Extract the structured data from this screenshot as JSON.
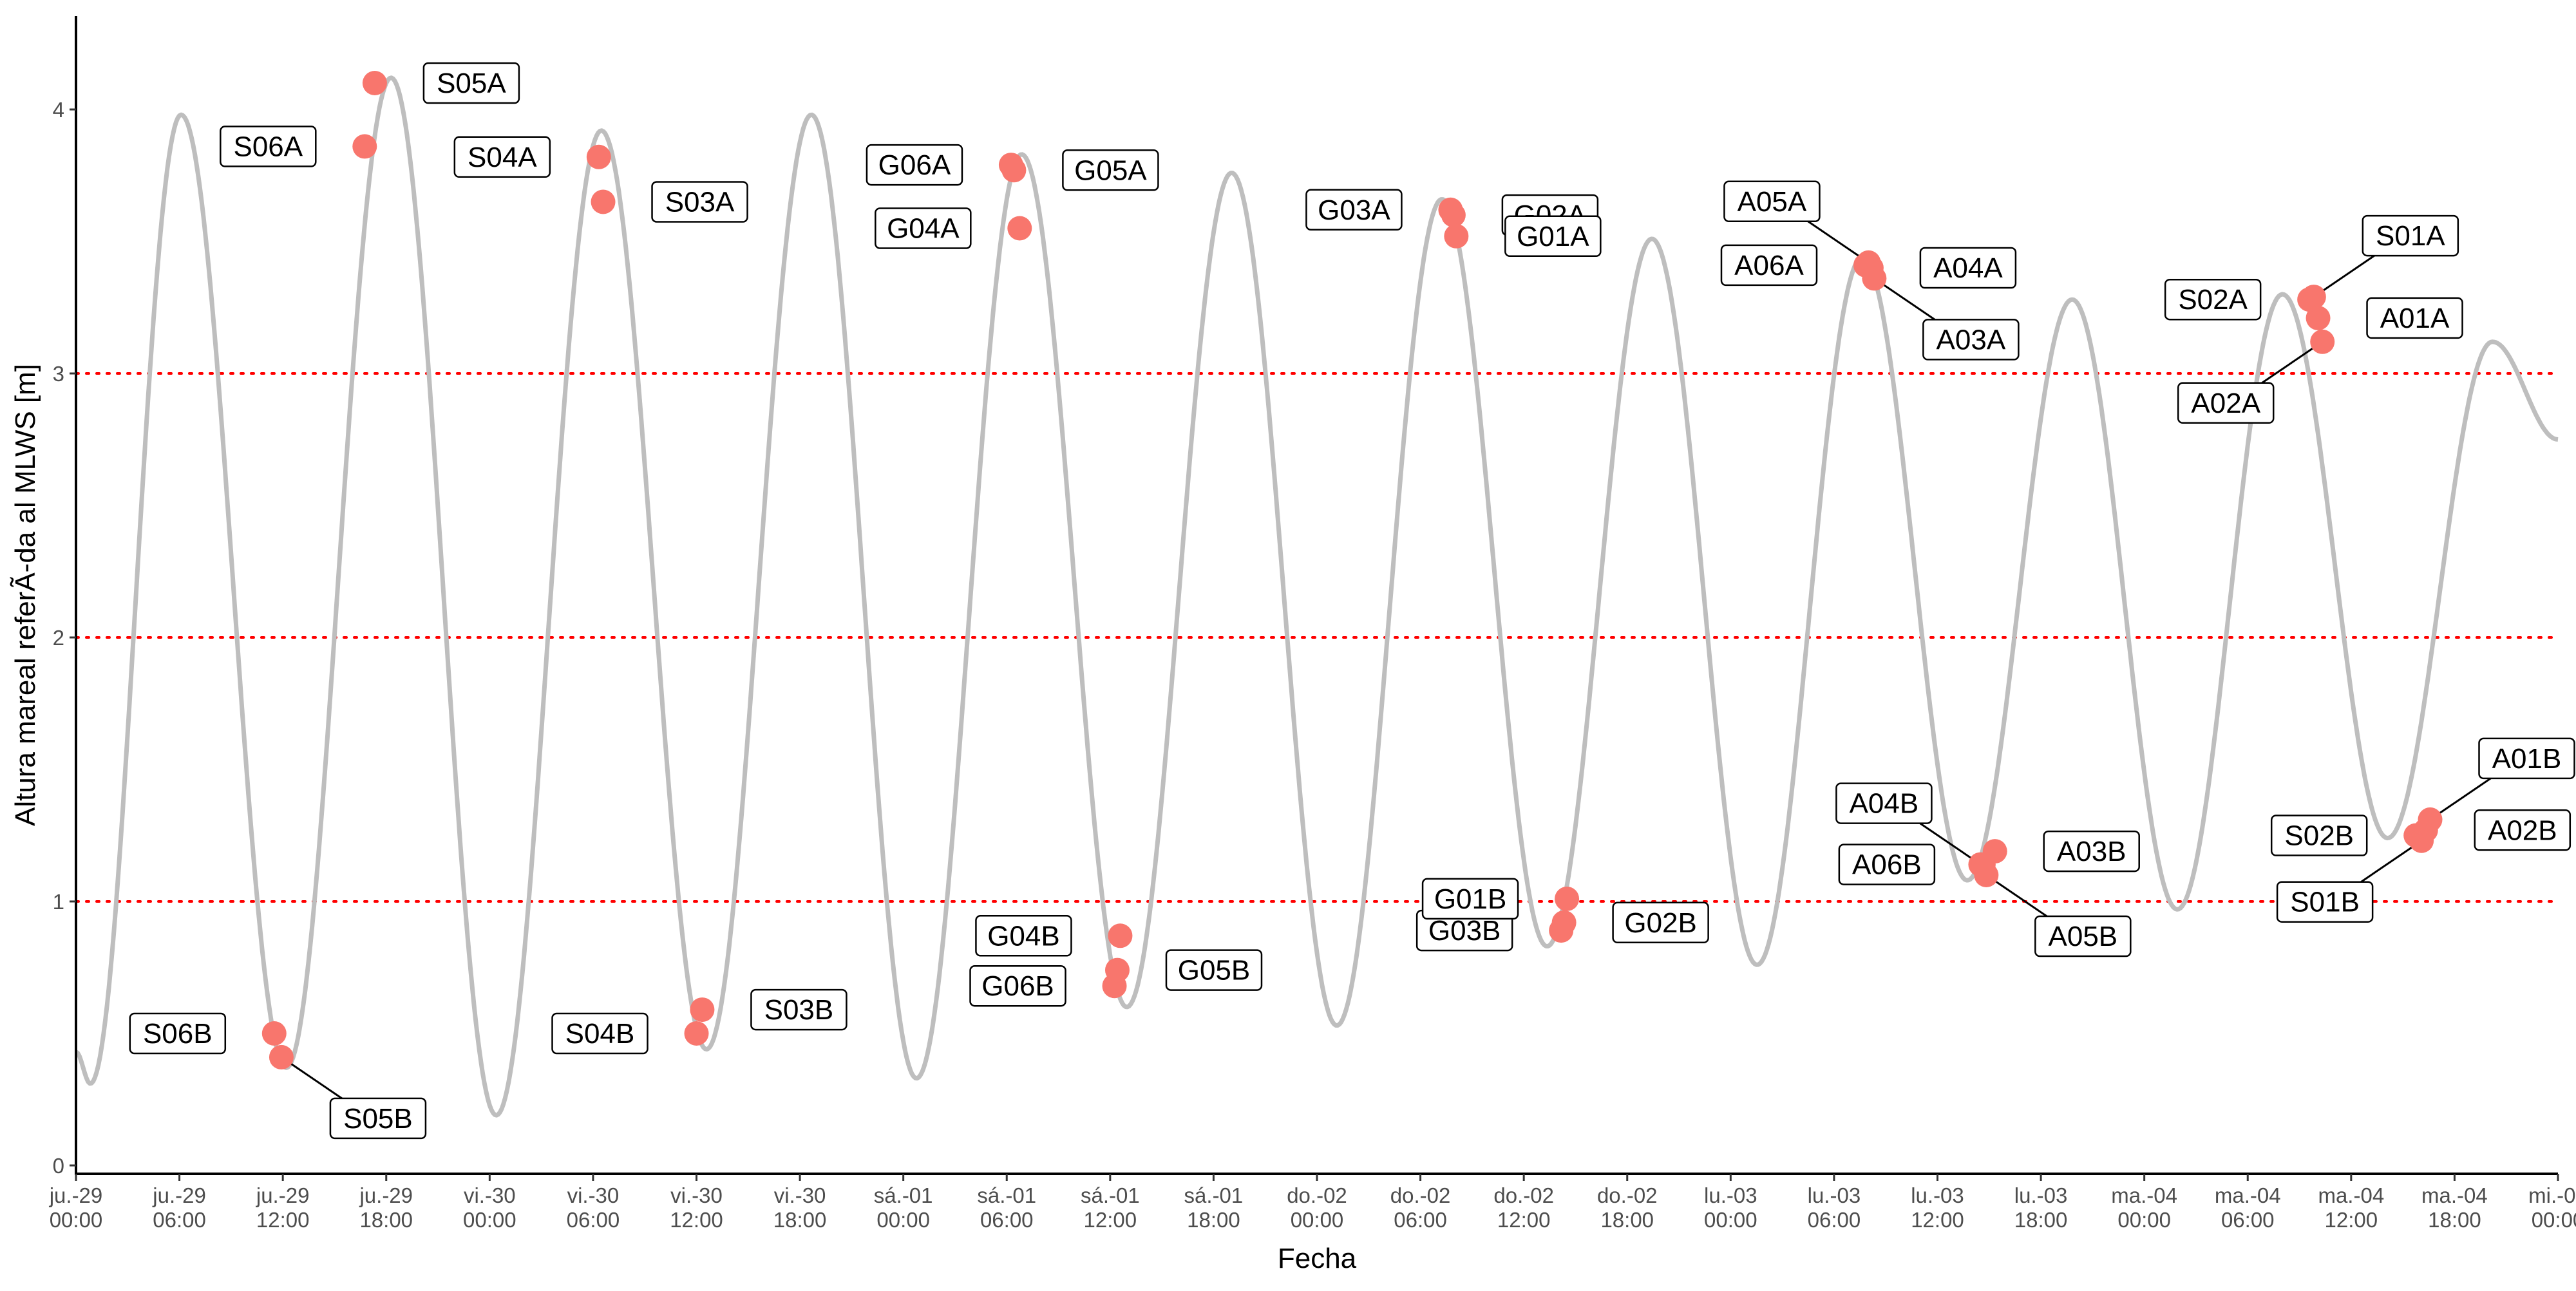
{
  "chart_data": {
    "type": "line",
    "xlabel": "Fecha",
    "ylabel": "Altura mareal referÃ-da al MLWS [m]",
    "xlim": [
      "2024-06-29 00:00",
      "2024-07-05 00:00"
    ],
    "ylim": [
      0,
      4.3
    ],
    "yticks": [
      0,
      1,
      2,
      3,
      4
    ],
    "grid": false,
    "reference_lines": [
      1,
      2,
      3
    ],
    "colors": {
      "tide_line": "#bebebe",
      "points": "#f8766d",
      "reference_lines": "#ff0000"
    },
    "xticks": [
      {
        "date": "2024-06-29 00:00",
        "line1": "ju.-29",
        "line2": "00:00"
      },
      {
        "date": "2024-06-29 06:00",
        "line1": "ju.-29",
        "line2": "06:00"
      },
      {
        "date": "2024-06-29 12:00",
        "line1": "ju.-29",
        "line2": "12:00"
      },
      {
        "date": "2024-06-29 18:00",
        "line1": "ju.-29",
        "line2": "18:00"
      },
      {
        "date": "2024-06-30 00:00",
        "line1": "vi.-30",
        "line2": "00:00"
      },
      {
        "date": "2024-06-30 06:00",
        "line1": "vi.-30",
        "line2": "06:00"
      },
      {
        "date": "2024-06-30 12:00",
        "line1": "vi.-30",
        "line2": "12:00"
      },
      {
        "date": "2024-06-30 18:00",
        "line1": "vi.-30",
        "line2": "18:00"
      },
      {
        "date": "2024-07-01 00:00",
        "line1": "sá.-01",
        "line2": "00:00"
      },
      {
        "date": "2024-07-01 06:00",
        "line1": "sá.-01",
        "line2": "06:00"
      },
      {
        "date": "2024-07-01 12:00",
        "line1": "sá.-01",
        "line2": "12:00"
      },
      {
        "date": "2024-07-01 18:00",
        "line1": "sá.-01",
        "line2": "18:00"
      },
      {
        "date": "2024-07-02 00:00",
        "line1": "do.-02",
        "line2": "00:00"
      },
      {
        "date": "2024-07-02 06:00",
        "line1": "do.-02",
        "line2": "06:00"
      },
      {
        "date": "2024-07-02 12:00",
        "line1": "do.-02",
        "line2": "12:00"
      },
      {
        "date": "2024-07-02 18:00",
        "line1": "do.-02",
        "line2": "18:00"
      },
      {
        "date": "2024-07-03 00:00",
        "line1": "lu.-03",
        "line2": "00:00"
      },
      {
        "date": "2024-07-03 06:00",
        "line1": "lu.-03",
        "line2": "06:00"
      },
      {
        "date": "2024-07-03 12:00",
        "line1": "lu.-03",
        "line2": "12:00"
      },
      {
        "date": "2024-07-03 18:00",
        "line1": "lu.-03",
        "line2": "18:00"
      },
      {
        "date": "2024-07-04 00:00",
        "line1": "ma.-04",
        "line2": "00:00"
      },
      {
        "date": "2024-07-04 06:00",
        "line1": "ma.-04",
        "line2": "06:00"
      },
      {
        "date": "2024-07-04 12:00",
        "line1": "ma.-04",
        "line2": "12:00"
      },
      {
        "date": "2024-07-04 18:00",
        "line1": "ma.-04",
        "line2": "18:00"
      },
      {
        "date": "2024-07-05 00:00",
        "line1": "mi.-05",
        "line2": "00:00"
      }
    ],
    "tide_extremes": [
      {
        "date": "2024-06-29 00:00",
        "y": 0.43
      },
      {
        "date": "2024-06-29 00:50",
        "y": 0.31
      },
      {
        "date": "2024-06-29 06:06",
        "y": 3.98
      },
      {
        "date": "2024-06-29 12:12",
        "y": 0.37
      },
      {
        "date": "2024-06-29 18:17",
        "y": 4.12
      },
      {
        "date": "2024-06-30 00:23",
        "y": 0.19
      },
      {
        "date": "2024-06-30 06:29",
        "y": 3.92
      },
      {
        "date": "2024-06-30 12:35",
        "y": 0.44
      },
      {
        "date": "2024-06-30 18:40",
        "y": 3.98
      },
      {
        "date": "2024-07-01 00:46",
        "y": 0.33
      },
      {
        "date": "2024-07-01 06:52",
        "y": 3.83
      },
      {
        "date": "2024-07-01 12:58",
        "y": 0.6
      },
      {
        "date": "2024-07-01 19:03",
        "y": 3.76
      },
      {
        "date": "2024-07-02 01:09",
        "y": 0.53
      },
      {
        "date": "2024-07-02 07:15",
        "y": 3.66
      },
      {
        "date": "2024-07-02 13:21",
        "y": 0.83
      },
      {
        "date": "2024-07-02 19:26",
        "y": 3.51
      },
      {
        "date": "2024-07-03 01:32",
        "y": 0.76
      },
      {
        "date": "2024-07-03 07:38",
        "y": 3.44
      },
      {
        "date": "2024-07-03 13:44",
        "y": 1.08
      },
      {
        "date": "2024-07-03 19:49",
        "y": 3.28
      },
      {
        "date": "2024-07-04 01:55",
        "y": 0.97
      },
      {
        "date": "2024-07-04 08:01",
        "y": 3.3
      },
      {
        "date": "2024-07-04 14:07",
        "y": 1.24
      },
      {
        "date": "2024-07-04 20:12",
        "y": 3.12
      },
      {
        "date": "2024-07-05 00:00",
        "y": 2.75
      }
    ],
    "points": [
      {
        "label": "S06B",
        "date": "2024-06-29 11:30",
        "y": 0.5,
        "label_pos": "left"
      },
      {
        "label": "S05B",
        "date": "2024-06-29 11:55",
        "y": 0.41,
        "label_pos": "below-right"
      },
      {
        "label": "S06A",
        "date": "2024-06-29 16:45",
        "y": 3.86,
        "label_pos": "left"
      },
      {
        "label": "S05A",
        "date": "2024-06-29 17:20",
        "y": 4.1,
        "label_pos": "right"
      },
      {
        "label": "S04A",
        "date": "2024-06-30 06:20",
        "y": 3.82,
        "label_pos": "left"
      },
      {
        "label": "S03A",
        "date": "2024-06-30 06:35",
        "y": 3.65,
        "label_pos": "right"
      },
      {
        "label": "S04B",
        "date": "2024-06-30 12:00",
        "y": 0.5,
        "label_pos": "left"
      },
      {
        "label": "S03B",
        "date": "2024-06-30 12:20",
        "y": 0.59,
        "label_pos": "right"
      },
      {
        "label": "G06A",
        "date": "2024-07-01 06:15",
        "y": 3.79,
        "label_pos": "left"
      },
      {
        "label": "G05A",
        "date": "2024-07-01 06:25",
        "y": 3.77,
        "label_pos": "right"
      },
      {
        "label": "G04A",
        "date": "2024-07-01 06:45",
        "y": 3.55,
        "label_pos": "left"
      },
      {
        "label": "G06B",
        "date": "2024-07-01 12:15",
        "y": 0.68,
        "label_pos": "left"
      },
      {
        "label": "G05B",
        "date": "2024-07-01 12:25",
        "y": 0.74,
        "label_pos": "right"
      },
      {
        "label": "G04B",
        "date": "2024-07-01 12:35",
        "y": 0.87,
        "label_pos": "left"
      },
      {
        "label": "G03A",
        "date": "2024-07-02 07:45",
        "y": 3.62,
        "label_pos": "left"
      },
      {
        "label": "G02A",
        "date": "2024-07-02 07:55",
        "y": 3.6,
        "label_pos": "right"
      },
      {
        "label": "G01A",
        "date": "2024-07-02 08:05",
        "y": 3.52,
        "label_pos": "right"
      },
      {
        "label": "G03B",
        "date": "2024-07-02 14:10",
        "y": 0.89,
        "label_pos": "left"
      },
      {
        "label": "G02B",
        "date": "2024-07-02 14:20",
        "y": 0.92,
        "label_pos": "right"
      },
      {
        "label": "G01B",
        "date": "2024-07-02 14:30",
        "y": 1.01,
        "label_pos": "left"
      },
      {
        "label": "A06A",
        "date": "2024-07-03 07:50",
        "y": 3.41,
        "label_pos": "left"
      },
      {
        "label": "A05A",
        "date": "2024-07-03 08:00",
        "y": 3.42,
        "label_pos": "above-left"
      },
      {
        "label": "A04A",
        "date": "2024-07-03 08:10",
        "y": 3.4,
        "label_pos": "right"
      },
      {
        "label": "A03A",
        "date": "2024-07-03 08:20",
        "y": 3.36,
        "label_pos": "below-right"
      },
      {
        "label": "A04B",
        "date": "2024-07-03 14:30",
        "y": 1.14,
        "label_pos": "above-left"
      },
      {
        "label": "A06B",
        "date": "2024-07-03 14:40",
        "y": 1.14,
        "label_pos": "left"
      },
      {
        "label": "A05B",
        "date": "2024-07-03 14:50",
        "y": 1.1,
        "label_pos": "below-right"
      },
      {
        "label": "A03B",
        "date": "2024-07-03 15:20",
        "y": 1.19,
        "label_pos": "right"
      },
      {
        "label": "S02A",
        "date": "2024-07-04 09:35",
        "y": 3.28,
        "label_pos": "left"
      },
      {
        "label": "S01A",
        "date": "2024-07-04 09:50",
        "y": 3.29,
        "label_pos": "above-right"
      },
      {
        "label": "A01A",
        "date": "2024-07-04 10:05",
        "y": 3.21,
        "label_pos": "right"
      },
      {
        "label": "A02A",
        "date": "2024-07-04 10:20",
        "y": 3.12,
        "label_pos": "below-left"
      },
      {
        "label": "S02B",
        "date": "2024-07-04 15:45",
        "y": 1.25,
        "label_pos": "left"
      },
      {
        "label": "S01B",
        "date": "2024-07-04 16:05",
        "y": 1.23,
        "label_pos": "below-left"
      },
      {
        "label": "A02B",
        "date": "2024-07-04 16:20",
        "y": 1.27,
        "label_pos": "right"
      },
      {
        "label": "A01B",
        "date": "2024-07-04 16:35",
        "y": 1.31,
        "label_pos": "above-right"
      }
    ]
  }
}
